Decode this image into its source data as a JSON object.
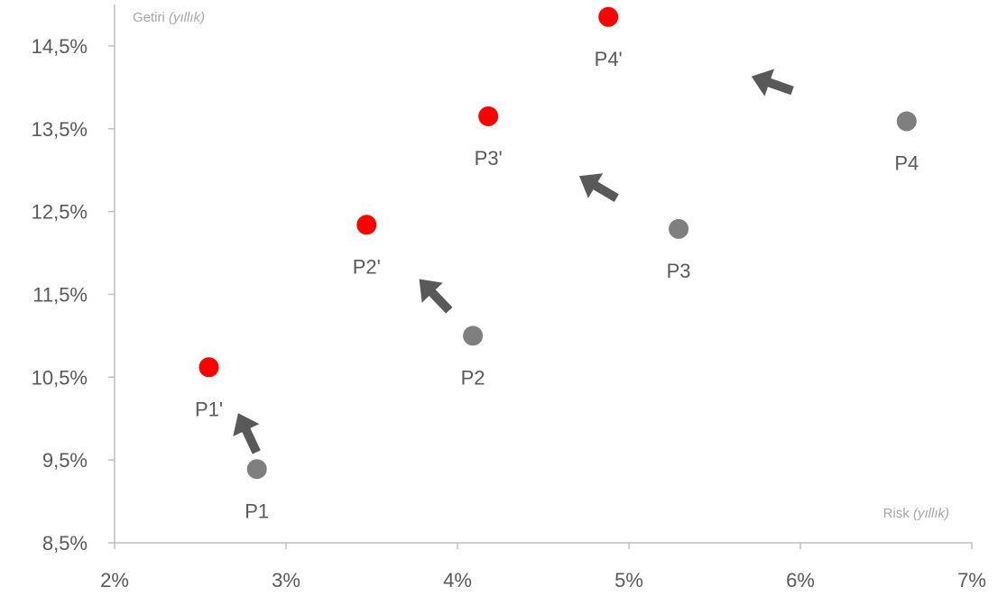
{
  "chart_data": {
    "type": "scatter",
    "ylabel": "Getiri",
    "ylabel_unit": "(yıllık)",
    "xlabel": "Risk",
    "xlabel_unit": "(yıllık)",
    "xlim": [
      2,
      7
    ],
    "ylim": [
      8.5,
      15.0
    ],
    "x_ticks": [
      "2%",
      "3%",
      "4%",
      "5%",
      "6%",
      "7%"
    ],
    "y_ticks": [
      "8,5%",
      "9,5%",
      "10,5%",
      "11,5%",
      "12,5%",
      "13,5%",
      "14,5%"
    ],
    "grid": false,
    "series": [
      {
        "color": "#7f7f7f",
        "points": [
          {
            "label": "P1",
            "x": 2.83,
            "y": 9.39
          },
          {
            "label": "P2",
            "x": 4.09,
            "y": 11.0
          },
          {
            "label": "P3",
            "x": 5.29,
            "y": 12.29
          },
          {
            "label": "P4",
            "x": 6.62,
            "y": 13.59
          }
        ]
      },
      {
        "color": "#ff0000",
        "points": [
          {
            "label": "P1'",
            "x": 2.55,
            "y": 10.62
          },
          {
            "label": "P2'",
            "x": 3.47,
            "y": 12.34
          },
          {
            "label": "P3'",
            "x": 4.18,
            "y": 13.65
          },
          {
            "label": "P4'",
            "x": 4.88,
            "y": 14.85
          }
        ]
      }
    ],
    "arrows": {
      "color": "#595959",
      "direction": "up-left",
      "items": [
        {
          "from": "P1",
          "to": "P1'"
        },
        {
          "from": "P2",
          "to": "P2'"
        },
        {
          "from": "P3",
          "to": "P3'"
        },
        {
          "from": "P4",
          "to": "P4'"
        }
      ]
    }
  }
}
